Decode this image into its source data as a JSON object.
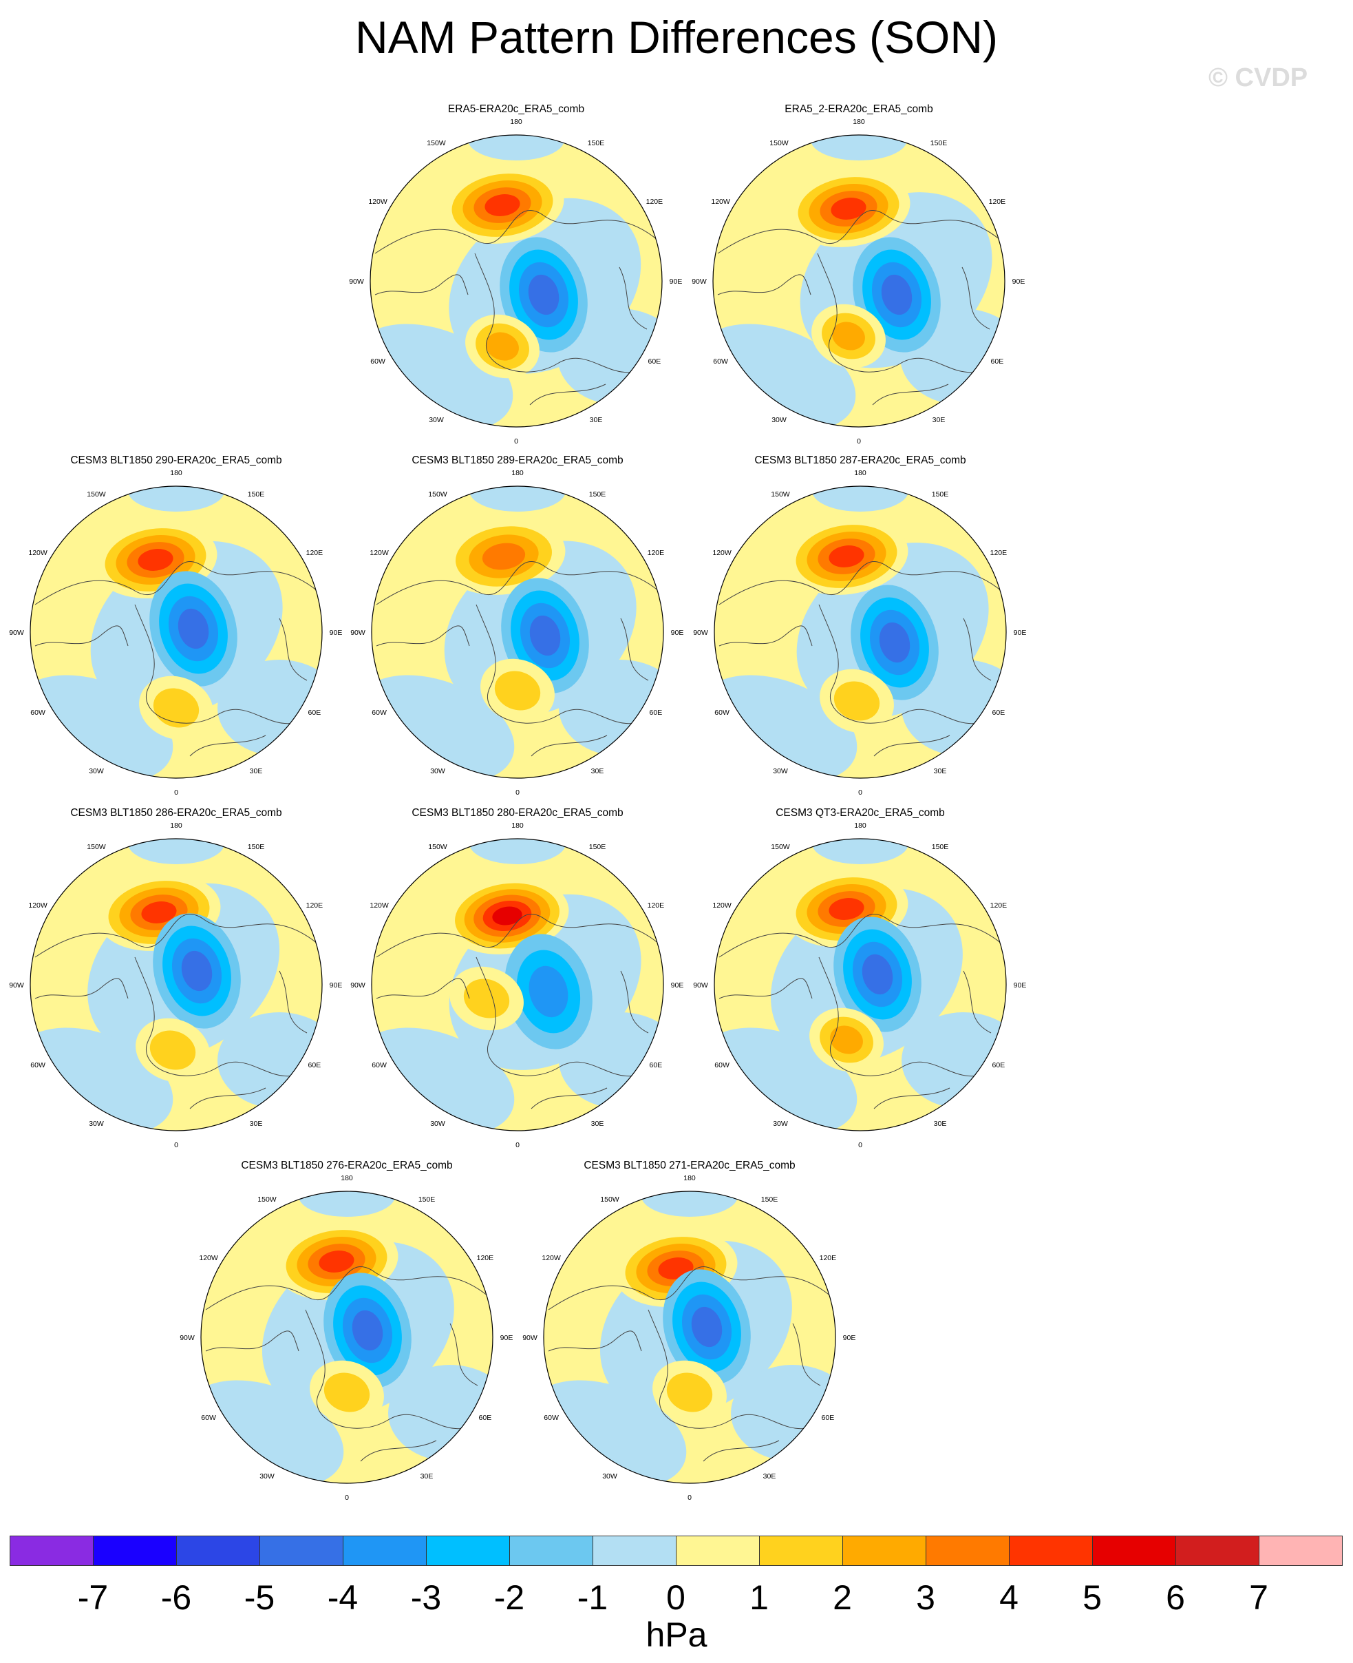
{
  "figure": {
    "title": "NAM Pattern Differences (SON)",
    "watermark": "© CVDP"
  },
  "panels": [
    {
      "title": "ERA5-ERA20c_ERA5_comb",
      "pos": 1,
      "variant": "era5"
    },
    {
      "title": "ERA5_2-ERA20c_ERA5_comb",
      "pos": 2,
      "variant": "era5_2"
    },
    {
      "title": "CESM3 BLT1850 290-ERA20c_ERA5_comb",
      "pos": 3,
      "variant": "m290"
    },
    {
      "title": "CESM3 BLT1850 289-ERA20c_ERA5_comb",
      "pos": 4,
      "variant": "m289"
    },
    {
      "title": "CESM3 BLT1850 287-ERA20c_ERA5_comb",
      "pos": 5,
      "variant": "m287"
    },
    {
      "title": "CESM3 BLT1850 286-ERA20c_ERA5_comb",
      "pos": 6,
      "variant": "m286"
    },
    {
      "title": "CESM3 BLT1850 280-ERA20c_ERA5_comb",
      "pos": 7,
      "variant": "m280"
    },
    {
      "title": "CESM3 QT3-ERA20c_ERA5_comb",
      "pos": 8,
      "variant": "qt3"
    },
    {
      "title": "CESM3 BLT1850 276-ERA20c_ERA5_comb",
      "pos": 9,
      "variant": "m276"
    },
    {
      "title": "CESM3 BLT1850 271-ERA20c_ERA5_comb",
      "pos": 10,
      "variant": "m271"
    }
  ],
  "longitude_labels": [
    "180",
    "150E",
    "120E",
    "90E",
    "60E",
    "30E",
    "0",
    "30W",
    "60W",
    "90W",
    "120W",
    "150W"
  ],
  "colorbar": {
    "units": "hPa",
    "tick_labels": [
      "-7",
      "-6",
      "-5",
      "-4",
      "-3",
      "-2",
      "-1",
      "0",
      "1",
      "2",
      "3",
      "4",
      "5",
      "6",
      "7"
    ],
    "colors": [
      "#8a2be2",
      "#1a00ff",
      "#2c46e6",
      "#3670e6",
      "#1f96f5",
      "#00bfff",
      "#6cc8f0",
      "#b3dff3",
      "#fff693",
      "#ffd21e",
      "#ffaa00",
      "#ff7a00",
      "#ff3400",
      "#e60000",
      "#d21e1e",
      "#ffb4b4"
    ]
  },
  "chart_data": {
    "type": "heatmap",
    "projection": "north polar stereographic",
    "title": "NAM Pattern Differences (SON)",
    "units": "hPa",
    "contour_levels": [
      -7,
      -6,
      -5,
      -4,
      -3,
      -2,
      -1,
      0,
      1,
      2,
      3,
      4,
      5,
      6,
      7
    ],
    "panel_extrema_approx": [
      {
        "panel": "ERA5-ERA20c_ERA5_comb",
        "max": 5,
        "min": -4
      },
      {
        "panel": "ERA5_2-ERA20c_ERA5_comb",
        "max": 5,
        "min": -4
      },
      {
        "panel": "CESM3 BLT1850 290-ERA20c_ERA5_comb",
        "max": 5,
        "min": -4
      },
      {
        "panel": "CESM3 BLT1850 289-ERA20c_ERA5_comb",
        "max": 4,
        "min": -4
      },
      {
        "panel": "CESM3 BLT1850 287-ERA20c_ERA5_comb",
        "max": 5,
        "min": -4
      },
      {
        "panel": "CESM3 BLT1850 286-ERA20c_ERA5_comb",
        "max": 5,
        "min": -4
      },
      {
        "panel": "CESM3 BLT1850 280-ERA20c_ERA5_comb",
        "max": 6,
        "min": -3
      },
      {
        "panel": "CESM3 QT3-ERA20c_ERA5_comb",
        "max": 5,
        "min": -4
      },
      {
        "panel": "CESM3 BLT1850 276-ERA20c_ERA5_comb",
        "max": 5,
        "min": -4
      },
      {
        "panel": "CESM3 BLT1850 271-ERA20c_ERA5_comb",
        "max": 5,
        "min": -4
      }
    ]
  }
}
